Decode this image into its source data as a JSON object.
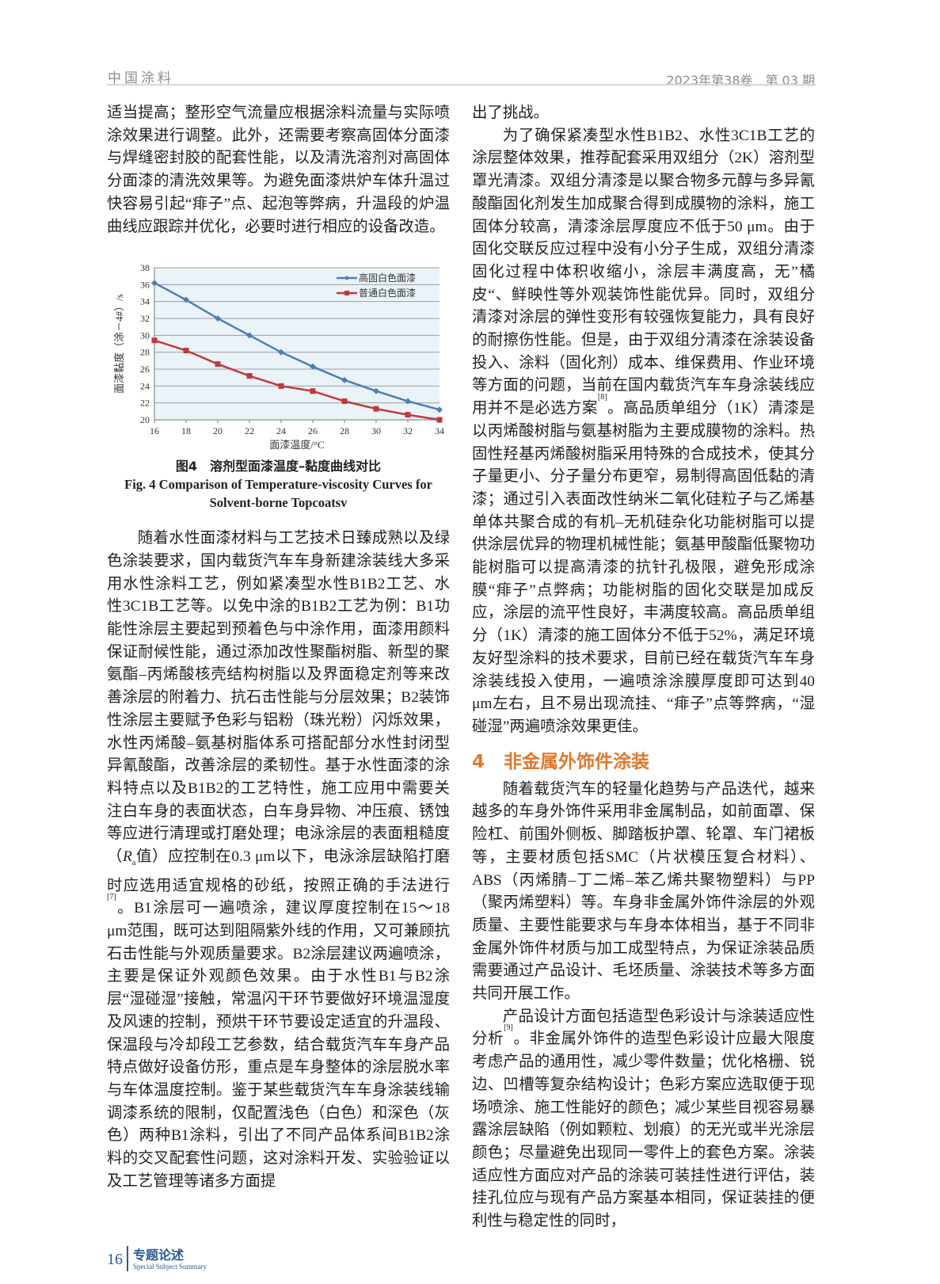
{
  "header": {
    "journal": "中国涂料",
    "issue": "2023年第38卷　第 03 期"
  },
  "left": {
    "p1": "适当提高；整形空气流量应根据涂料流量与实际喷涂效果进行调整。此外，还需要考察高固体分面漆与焊缝密封胶的配套性能，以及清洗溶剂对高固体分面漆的清洗效果等。为避免面漆烘炉车体升温过快容易引起“痱子”点、起泡等弊病，升温段的炉温曲线应跟踪并优化，必要时进行相应的设备改造。",
    "p2a": "随着水性面漆材料与工艺技术日臻成熟以及绿色涂装要求，国内载货汽车车身新建涂装线大多采用水性涂料工艺，例如紧凑型水性B1B2工艺、水性3C1B工艺等。以免中涂的B1B2工艺为例：B1功能性涂层主要起到预着色与中涂作用，面漆用颜料保证耐候性能，通过添加改性聚酯树脂、新型的聚氨酯–丙烯酸核壳结构树脂以及界面稳定剂等来改善涂层的附着力、抗石击性能与分层效果；B2装饰性涂层主要赋予色彩与铝粉（珠光粉）闪烁效果，水性丙烯酸–氨基树脂体系可搭配部分水性封闭型异氰酸酯，改善涂层的柔韧性。基于水性面漆的涂料特点以及B1B2的工艺特性，施工应用中需要关注白车身的表面状态，白车身异物、冲压痕、锈蚀等应进行清理或打磨处理；电泳涂层的表面粗糙度（",
    "p2_ra": "R",
    "p2_ra_sub": "a",
    "p2b": "值）应控制在0.3 μm以下，电泳涂层缺陷打磨时应选用适宜规格的砂纸，按照正确的手法进行",
    "p2_ref": "[7]",
    "p2c": "。B1涂层可一遍喷涂，建议厚度控制在15～18 μm范围，既可达到阻隔紫外线的作用，又可兼顾抗石击性能与外观质量要求。B2涂层建议两遍喷涂，主要是保证外观颜色效果。由于水性B1与B2涂层“湿碰湿”接触，常温闪干环节要做好环境温湿度及风速的控制，预烘干环节要设定适宜的升温段、保温段与冷却段工艺参数，结合载货汽车车身产品特点做好设备仿形，重点是车身整体的涂层脱水率与车体温度控制。鉴于某些载货汽车车身涂装线输调漆系统的限制，仅配置浅色（白色）和深色（灰色）两种B1涂料，引出了不同产品体系间B1B2涂料的交叉配套性问题，这对涂料开发、实验验证以及工艺管理等诸多方面提"
  },
  "figure": {
    "caption_zh": "图4　溶剂型面漆温度–黏度曲线对比",
    "caption_en": "Fig. 4 Comparison of Temperature-viscosity Curves for Solvent-borne Topcoatsv"
  },
  "chart_data": {
    "type": "line",
    "xlabel": "面漆温度/°C",
    "ylabel": "面漆黏度（涂－4#）/s",
    "x": [
      16,
      18,
      20,
      22,
      24,
      26,
      28,
      30,
      32,
      34
    ],
    "xlim": [
      16,
      34
    ],
    "ylim": [
      20,
      38
    ],
    "xticks": [
      "16",
      "18",
      "20",
      "22",
      "24",
      "26",
      "28",
      "30",
      "32",
      "34"
    ],
    "yticks": [
      "20",
      "22",
      "24",
      "26",
      "28",
      "30",
      "32",
      "34",
      "36",
      "38"
    ],
    "grid": "horizontal",
    "legend": "top-right",
    "series": [
      {
        "name": "高固白色面漆",
        "color": "#4a7ebb",
        "marker": "diamond",
        "values": [
          36.2,
          34.2,
          32.0,
          30.0,
          28.0,
          26.3,
          24.7,
          23.4,
          22.2,
          21.2
        ]
      },
      {
        "name": "普通白色面漆",
        "color": "#c0393b",
        "marker": "square",
        "values": [
          29.4,
          28.2,
          26.6,
          25.2,
          24.0,
          23.4,
          22.2,
          21.3,
          20.6,
          20.0
        ]
      }
    ],
    "plot_background": "#eaf3f8"
  },
  "right": {
    "p0": "出了挑战。",
    "p1a": "为了确保紧凑型水性B1B2、水性3C1B工艺的涂层整体效果，推荐配套采用双组分（2K）溶剂型罩光清漆。双组分清漆是以聚合物多元醇与多异氰酸酯固化剂发生加成聚合得到成膜物的涂料，施工固体分较高，清漆涂层厚度应不低于50 μm。由于固化交联反应过程中没有小分子生成，双组分清漆固化过程中体积收缩小，涂层丰满度高，无”橘皮“、鲜映性等外观装饰性能优异。同时，双组分清漆对涂层的弹性变形有较强恢复能力，具有良好的耐擦伤性能。但是，由于双组分清漆在涂装设备投入、涂料（固化剂）成本、维保费用、作业环境等方面的问题，当前在国内载货汽车车身涂装线应用并不是必选方案",
    "p1_ref": "[8]",
    "p1b": "。高品质单组分（1K）清漆是以丙烯酸树脂与氨基树脂为主要成膜物的涂料。热固性羟基丙烯酸树脂采用特殊的合成技术，使其分子量更小、分子量分布更窄，易制得高固低黏的清漆；通过引入表面改性纳米二氧化硅粒子与乙烯基单体共聚合成的有机–无机硅杂化功能树脂可以提供涂层优异的物理机械性能；氨基甲酸酯低聚物功能树脂可以提高清漆的抗针孔极限，避免形成涂膜“痱子”点弊病；功能树脂的固化交联是加成反应，涂层的流平性良好，丰满度较高。高品质单组分（1K）清漆的施工固体分不低于52%，满足环境友好型涂料的技术要求，目前已经在载货汽车车身涂装线投入使用，一遍喷涂涂膜厚度即可达到40 μm左右，且不易出现流挂、“痱子”点等弊病，“湿碰湿”两遍喷涂效果更佳。",
    "section_num": "4",
    "section_title": "非金属外饰件涂装",
    "p2": "随着载货汽车的轻量化趋势与产品迭代，越来越多的车身外饰件采用非金属制品，如前面罩、保险杠、前围外侧板、脚踏板护罩、轮罩、车门裙板等，主要材质包括SMC（片状模压复合材料）、ABS（丙烯腈–丁二烯–苯乙烯共聚物塑料）与PP（聚丙烯塑料）等。车身非金属外饰件涂层的外观质量、主要性能要求与车身本体相当，基于不同非金属外饰件材质与加工成型特点，为保证涂装品质需要通过产品设计、毛坯质量、涂装技术等多方面共同开展工作。",
    "p3a": "产品设计方面包括造型色彩设计与涂装适应性分析",
    "p3_ref": "[9]",
    "p3b": "。非金属外饰件的造型色彩设计应最大限度考虑产品的通用性，减少零件数量；优化格栅、锐边、凹槽等复杂结构设计；色彩方案应选取便于现场喷涂、施工性能好的颜色；减少某些目视容易暴露涂层缺陷（例如颗粒、划痕）的无光或半光涂层颜色；尽量避免出现同一零件上的套色方案。涂装适应性方面应对产品的涂装可装挂性进行评估，装挂孔位应与现有产品方案基本相同，保证装挂的便利性与稳定性的同时，"
  },
  "footer": {
    "page": "16",
    "column": "专题论述",
    "column_en": "Special Subject Summary"
  }
}
